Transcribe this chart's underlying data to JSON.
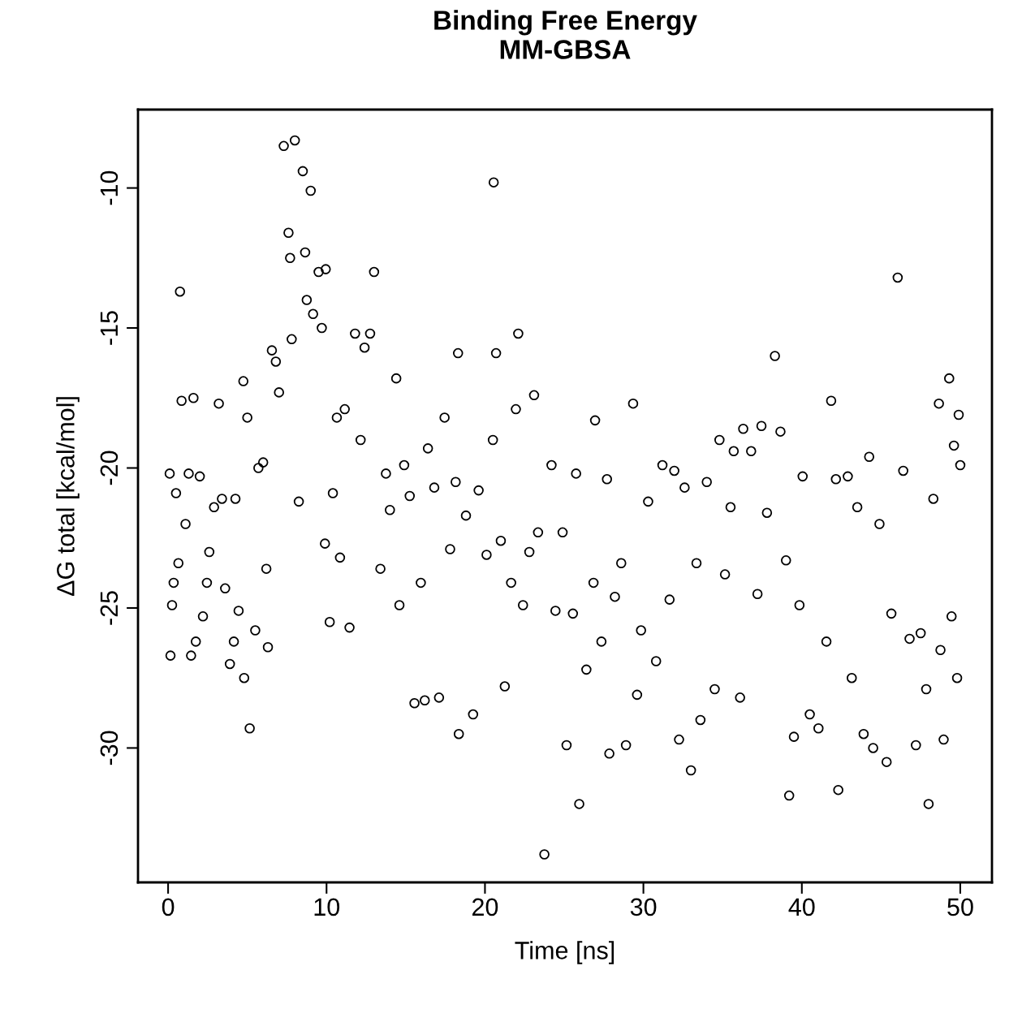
{
  "chart_data": {
    "type": "scatter",
    "title": "Binding Free Energy\nMM-GBSA",
    "xlabel": "Time [ns]",
    "ylabel": "ΔG total [kcal/mol]",
    "xlim": [
      -1.9,
      52.0
    ],
    "ylim": [
      -34.8,
      -7.2
    ],
    "xticks": [
      0,
      10,
      20,
      30,
      40,
      50
    ],
    "yticks": [
      -30,
      -25,
      -20,
      -15,
      -10
    ],
    "marker": "circle",
    "grid": false,
    "legend": false,
    "series": [
      {
        "color": "#000000",
        "x": [
          0.1,
          0.15,
          0.25,
          0.35,
          0.5,
          0.65,
          0.75,
          0.85,
          1.1,
          1.3,
          1.45,
          1.6,
          1.75,
          2.0,
          2.2,
          2.45,
          2.6,
          2.9,
          3.2,
          3.4,
          3.6,
          3.9,
          4.15,
          4.25,
          4.45,
          4.75,
          4.8,
          5.0,
          5.15,
          5.5,
          5.7,
          6.0,
          6.2,
          6.3,
          6.55,
          6.8,
          7.0,
          7.3,
          7.6,
          7.7,
          7.8,
          8.0,
          8.25,
          8.5,
          8.65,
          8.75,
          9.0,
          9.15,
          9.5,
          9.7,
          9.95,
          9.9,
          10.2,
          10.4,
          10.65,
          10.85,
          11.15,
          11.45,
          11.8,
          12.15,
          12.4,
          12.75,
          13.0,
          13.4,
          13.75,
          14.0,
          14.4,
          14.6,
          14.9,
          15.25,
          15.55,
          15.95,
          16.2,
          16.4,
          16.8,
          17.1,
          17.45,
          17.8,
          18.15,
          18.3,
          18.35,
          18.8,
          19.25,
          19.6,
          20.1,
          20.5,
          20.55,
          20.7,
          21.0,
          21.25,
          21.65,
          21.95,
          22.1,
          22.4,
          22.8,
          23.1,
          23.35,
          23.75,
          24.2,
          24.45,
          24.9,
          25.15,
          25.55,
          25.75,
          25.95,
          26.4,
          26.85,
          26.95,
          27.35,
          27.7,
          27.85,
          28.2,
          28.6,
          28.9,
          29.35,
          29.6,
          29.85,
          30.3,
          30.8,
          31.2,
          31.65,
          31.95,
          32.25,
          32.6,
          33.0,
          33.35,
          33.6,
          34.0,
          34.5,
          34.8,
          35.15,
          35.5,
          35.7,
          36.1,
          36.3,
          36.8,
          37.2,
          37.45,
          37.8,
          38.3,
          38.65,
          39.0,
          39.2,
          39.5,
          39.85,
          40.05,
          40.5,
          41.05,
          41.55,
          41.85,
          42.15,
          42.3,
          42.9,
          43.15,
          43.5,
          43.9,
          44.25,
          44.5,
          44.9,
          45.35,
          45.65,
          46.05,
          46.4,
          46.8,
          47.2,
          47.5,
          47.85,
          48.0,
          48.3,
          48.65,
          48.95,
          49.3,
          49.6,
          49.9,
          50.0,
          49.8,
          49.45,
          48.75
        ],
        "values": [
          -20.2,
          -26.7,
          -24.9,
          -24.1,
          -20.9,
          -23.4,
          -13.7,
          -17.6,
          -22.0,
          -20.2,
          -26.7,
          -17.5,
          -26.2,
          -20.3,
          -25.3,
          -24.1,
          -23.0,
          -21.4,
          -17.7,
          -21.1,
          -24.3,
          -27.0,
          -26.2,
          -21.1,
          -25.1,
          -16.9,
          -27.5,
          -18.2,
          -29.3,
          -25.8,
          -20.0,
          -19.8,
          -23.6,
          -26.4,
          -15.8,
          -16.2,
          -17.3,
          -8.5,
          -11.6,
          -12.5,
          -15.4,
          -8.3,
          -21.2,
          -9.4,
          -12.3,
          -14.0,
          -10.1,
          -14.5,
          -13.0,
          -15.0,
          -12.9,
          -22.7,
          -25.5,
          -20.9,
          -18.2,
          -23.2,
          -17.9,
          -25.7,
          -15.2,
          -19.0,
          -15.7,
          -15.2,
          -13.0,
          -23.6,
          -20.2,
          -21.5,
          -16.8,
          -24.9,
          -19.9,
          -21.0,
          -28.4,
          -24.1,
          -28.3,
          -19.3,
          -20.7,
          -28.2,
          -18.2,
          -22.9,
          -20.5,
          -15.9,
          -29.5,
          -21.7,
          -28.8,
          -20.8,
          -23.1,
          -19.0,
          -9.8,
          -15.9,
          -22.6,
          -27.8,
          -24.1,
          -17.9,
          -15.2,
          -24.9,
          -23.0,
          -17.4,
          -22.3,
          -33.8,
          -19.9,
          -25.1,
          -22.3,
          -29.9,
          -25.2,
          -20.2,
          -32.0,
          -27.2,
          -24.1,
          -18.3,
          -26.2,
          -20.4,
          -30.2,
          -24.6,
          -23.4,
          -29.9,
          -17.7,
          -28.1,
          -25.8,
          -21.2,
          -26.9,
          -19.9,
          -24.7,
          -20.1,
          -29.7,
          -20.7,
          -30.8,
          -23.4,
          -29.0,
          -20.5,
          -27.9,
          -19.0,
          -23.8,
          -21.4,
          -19.4,
          -28.2,
          -18.6,
          -19.4,
          -24.5,
          -18.5,
          -21.6,
          -16.0,
          -18.7,
          -23.3,
          -31.7,
          -29.6,
          -24.9,
          -20.3,
          -28.8,
          -29.3,
          -26.2,
          -17.6,
          -20.4,
          -31.5,
          -20.3,
          -27.5,
          -21.4,
          -29.5,
          -19.6,
          -30.0,
          -22.0,
          -30.5,
          -25.2,
          -13.2,
          -20.1,
          -26.1,
          -29.9,
          -25.9,
          -27.9,
          -32.0,
          -21.1,
          -17.7,
          -29.7,
          -16.8,
          -19.2,
          -18.1,
          -19.9,
          -27.5,
          -25.3,
          -26.5
        ]
      }
    ]
  }
}
